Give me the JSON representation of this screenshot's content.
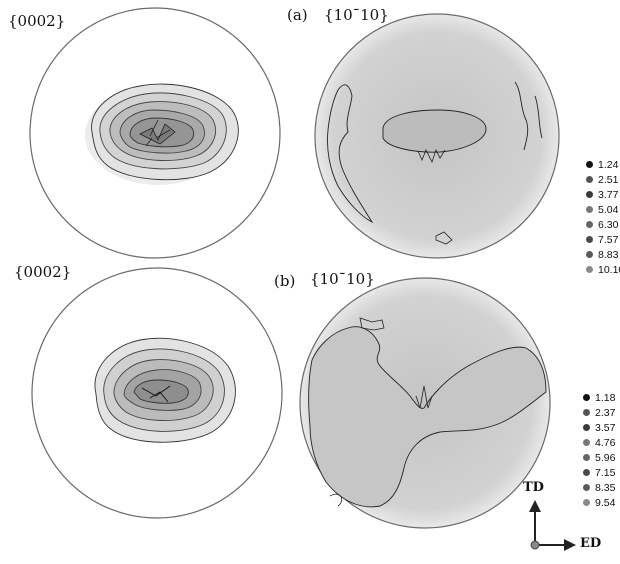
{
  "rows": [
    {
      "id": "a",
      "label": "(a)",
      "pole_left": "{0002}",
      "pole_right": "{10¯10}",
      "legend": [
        "1.24",
        "2.51",
        "3.77",
        "5.04",
        "6.30",
        "7.57",
        "8.83",
        "10.10"
      ]
    },
    {
      "id": "b",
      "label": "(b)",
      "pole_left": "{0002}",
      "pole_right": "{10¯10}",
      "legend": [
        "1.18",
        "2.37",
        "3.57",
        "4.76",
        "5.96",
        "7.15",
        "8.35",
        "9.54"
      ]
    }
  ],
  "legend_colors": [
    "#111111",
    "#555555",
    "#3a3a3a",
    "#777777",
    "#666666",
    "#4a4a4a",
    "#5a5a5a",
    "#8a8a8a"
  ],
  "axes": {
    "vertical": "TD",
    "horizontal": "ED"
  }
}
